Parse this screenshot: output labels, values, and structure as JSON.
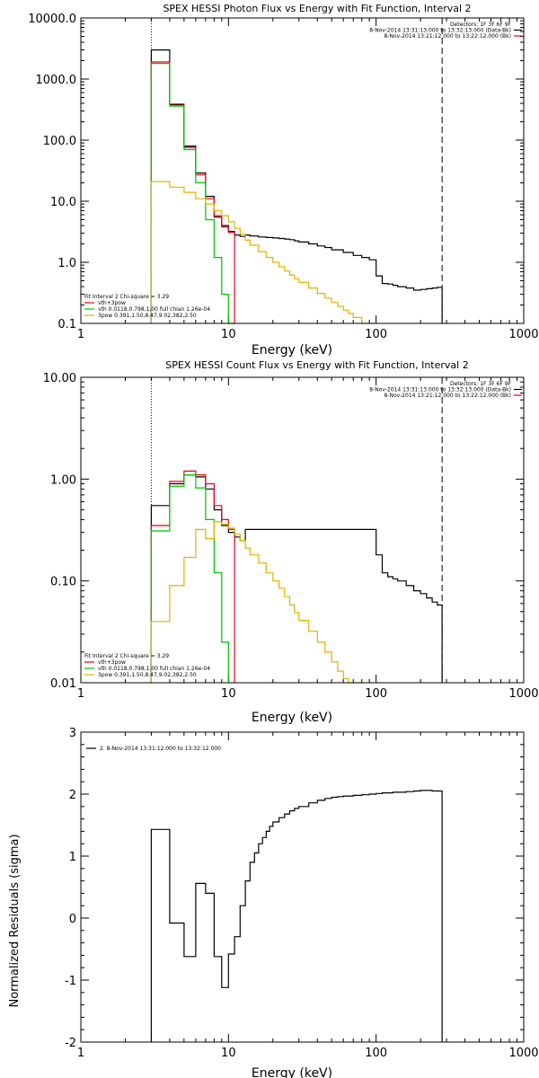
{
  "chart_data": [
    {
      "type": "line",
      "title": "SPEX HESSI Photon Flux vs Energy with Fit Function, Interval 2",
      "xlabel": "Energy (keV)",
      "ylabel": "",
      "xscale": "log",
      "yscale": "log",
      "xlim": [
        1,
        1000
      ],
      "ylim": [
        0.1,
        10000
      ],
      "xticks": [
        1,
        10,
        100,
        1000
      ],
      "xtick_labels": [
        "1",
        "10",
        "100",
        "1000"
      ],
      "yticks": [
        0.1,
        1,
        10,
        100,
        1000,
        10000
      ],
      "ytick_labels": [
        "0.1",
        "1.0",
        "10.0",
        "100.0",
        "1000.0",
        "10000.0"
      ],
      "vlines": [
        {
          "x": 3,
          "style": "dotted"
        },
        {
          "x": 280,
          "style": "dashed"
        }
      ],
      "legend_top_right": {
        "lines": [
          "Detectors: 1F 3F 6F 9F",
          "8-Nov-2014 13:31:13.000 to 13:32:13.000 (Data-Bk)",
          "8-Nov-2014 13:21:12.000 to 13:22:12.000 (Bk)"
        ],
        "colors": [
          "#000000",
          "#000000",
          "#e0001a"
        ]
      },
      "legend_bottom_left": {
        "lines": [
          "Fit Interval 2   Chi-square = 3.29",
          "vth+3pow",
          "vth 0.0118,0.798,1.00  full chian 1.26e-04",
          "3pow 0.391,1.50,8.47,9.02,382,2.50"
        ],
        "colors": [
          "#000000",
          "#e0001a",
          "#00c000",
          "#e0b000"
        ]
      },
      "series": [
        {
          "name": "Data-Bk",
          "color": "#000000",
          "x": [
            3,
            3.5,
            4,
            4.5,
            5,
            5.5,
            6,
            6.5,
            7,
            7.5,
            8,
            8.5,
            9,
            9.5,
            10,
            11,
            12,
            13,
            14,
            16,
            18,
            20,
            22,
            24,
            26,
            28,
            30,
            35,
            40,
            45,
            50,
            60,
            70,
            80,
            90,
            100,
            110,
            120,
            130,
            140,
            160,
            180,
            200,
            220,
            240,
            260,
            280
          ],
          "y": [
            3000,
            3000,
            380,
            380,
            80,
            80,
            29,
            29,
            12,
            12,
            5.5,
            5.5,
            4,
            4,
            3.2,
            2.8,
            2.65,
            2.8,
            2.7,
            2.6,
            2.55,
            2.5,
            2.45,
            2.4,
            2.35,
            2.25,
            2.15,
            2.0,
            1.85,
            1.75,
            1.6,
            1.45,
            1.3,
            1.2,
            1.1,
            0.6,
            0.45,
            0.44,
            0.42,
            0.4,
            0.38,
            0.35,
            0.36,
            0.37,
            0.38,
            0.39,
            0.39
          ]
        },
        {
          "name": "vth+3pow",
          "color": "#e0001a",
          "x": [
            3,
            3.5,
            4,
            4.5,
            5,
            5.5,
            6,
            6.5,
            7,
            7.5,
            8,
            8.5,
            9,
            9.5,
            10,
            11
          ],
          "y": [
            1900,
            1900,
            390,
            390,
            76,
            76,
            27,
            27,
            11,
            11,
            5.8,
            5.8,
            3.8,
            3.8,
            3.1,
            2.6
          ]
        },
        {
          "name": "vth",
          "color": "#00c000",
          "x": [
            3,
            3.5,
            4,
            4.5,
            5,
            5.5,
            6,
            6.5,
            7,
            7.5,
            8,
            8.5,
            9,
            9.5,
            10,
            11
          ],
          "y": [
            1800,
            1800,
            360,
            360,
            70,
            70,
            20,
            20,
            5,
            5,
            1.2,
            1.2,
            0.3,
            0.3,
            0.1,
            0.1
          ]
        },
        {
          "name": "3pow",
          "color": "#e0b000",
          "x": [
            3,
            3.5,
            4,
            4.5,
            5,
            5.5,
            6,
            6.5,
            7,
            7.5,
            8,
            8.5,
            9,
            9.5,
            10,
            11,
            12,
            13,
            14,
            16,
            18,
            20,
            22,
            24,
            26,
            28,
            30,
            35,
            40,
            45,
            50,
            55,
            60,
            65,
            70,
            80,
            90,
            100
          ],
          "y": [
            21,
            21,
            17,
            17,
            14,
            14,
            11,
            11,
            9,
            9,
            7,
            7,
            5.8,
            5.8,
            4.6,
            3.6,
            2.9,
            2.3,
            1.9,
            1.5,
            1.2,
            1.0,
            0.85,
            0.72,
            0.62,
            0.54,
            0.47,
            0.38,
            0.31,
            0.26,
            0.22,
            0.19,
            0.165,
            0.145,
            0.125,
            0.1,
            0.1,
            0.1
          ]
        }
      ]
    },
    {
      "type": "line",
      "title": "SPEX HESSI Count Flux vs Energy with Fit Function, Interval 2",
      "xlabel": "Energy (keV)",
      "ylabel": "",
      "xscale": "log",
      "yscale": "log",
      "xlim": [
        1,
        1000
      ],
      "ylim": [
        0.01,
        10
      ],
      "xticks": [
        1,
        10,
        100,
        1000
      ],
      "xtick_labels": [
        "1",
        "10",
        "100",
        "1000"
      ],
      "yticks": [
        0.01,
        0.1,
        1,
        10
      ],
      "ytick_labels": [
        "0.01",
        "0.10",
        "1.00",
        "10.00"
      ],
      "vlines": [
        {
          "x": 3,
          "style": "dotted"
        },
        {
          "x": 280,
          "style": "dashed"
        }
      ],
      "legend_top_right": {
        "lines": [
          "Detectors: 1F 3F 6F 9F",
          "8-Nov-2014 13:31:13.000 to 13:32:13.000 (Data-Bk)",
          "8-Nov-2014 13:21:12.000 to 13:22:12.000 (Bk)"
        ],
        "colors": [
          "#000000",
          "#000000",
          "#e0001a"
        ]
      },
      "legend_bottom_left": {
        "lines": [
          "Fit Interval 2   Chi-square = 3.29",
          "vth+3pow",
          "vth 0.0118,0.798,1.00  full chian 1.26e-04",
          "3pow 0.391,1.50,8.47,9.02,382,2.50"
        ],
        "colors": [
          "#000000",
          "#e0001a",
          "#00c000",
          "#e0b000"
        ]
      },
      "series": [
        {
          "name": "Data-Bk",
          "color": "#000000",
          "x": [
            3,
            3.5,
            4,
            4.5,
            5,
            5.5,
            6,
            6.5,
            7,
            7.5,
            8,
            8.5,
            9,
            9.5,
            10,
            11,
            12,
            13,
            14,
            16,
            18,
            20,
            22,
            24,
            26,
            28,
            30,
            35,
            40,
            45,
            50,
            60,
            70,
            80,
            90,
            100,
            110,
            120,
            130,
            140,
            160,
            180,
            200,
            220,
            240,
            260,
            280
          ],
          "y": [
            0.55,
            0.55,
            0.9,
            0.9,
            1.1,
            1.1,
            1.05,
            1.05,
            0.8,
            0.8,
            0.5,
            0.5,
            0.35,
            0.35,
            0.3,
            0.27,
            0.25,
            0.32,
            0.32,
            0.32,
            0.32,
            0.32,
            0.32,
            0.32,
            0.32,
            0.32,
            0.32,
            0.32,
            0.32,
            0.32,
            0.32,
            0.32,
            0.32,
            0.32,
            0.32,
            0.18,
            0.12,
            0.11,
            0.105,
            0.1,
            0.09,
            0.08,
            0.075,
            0.068,
            0.062,
            0.058,
            0.055
          ]
        },
        {
          "name": "vth+3pow",
          "color": "#e0001a",
          "x": [
            3,
            3.5,
            4,
            4.5,
            5,
            5.5,
            6,
            6.5,
            7,
            7.5,
            8,
            8.5,
            9,
            9.5,
            10,
            11
          ],
          "y": [
            0.35,
            0.35,
            0.95,
            0.95,
            1.2,
            1.2,
            1.1,
            1.1,
            0.9,
            0.9,
            0.55,
            0.55,
            0.4,
            0.4,
            0.32,
            0.28
          ]
        },
        {
          "name": "vth",
          "color": "#00c000",
          "x": [
            3,
            3.5,
            4,
            4.5,
            5,
            5.5,
            6,
            6.5,
            7,
            7.5,
            8,
            8.5,
            9,
            9.5,
            10
          ],
          "y": [
            0.31,
            0.31,
            0.85,
            0.85,
            1.1,
            1.1,
            0.82,
            0.82,
            0.4,
            0.4,
            0.12,
            0.12,
            0.025,
            0.025,
            0.01
          ]
        },
        {
          "name": "3pow",
          "color": "#e0b000",
          "x": [
            3,
            3.5,
            4,
            4.5,
            5,
            5.5,
            6,
            6.5,
            7,
            7.5,
            8,
            8.5,
            9,
            9.5,
            10,
            11,
            12,
            13,
            14,
            16,
            18,
            20,
            22,
            24,
            26,
            28,
            30,
            35,
            40,
            45,
            50,
            55,
            60,
            65,
            70,
            80
          ],
          "y": [
            0.04,
            0.04,
            0.09,
            0.09,
            0.17,
            0.17,
            0.32,
            0.32,
            0.26,
            0.26,
            0.38,
            0.38,
            0.36,
            0.36,
            0.33,
            0.29,
            0.25,
            0.21,
            0.18,
            0.15,
            0.12,
            0.1,
            0.085,
            0.07,
            0.058,
            0.049,
            0.041,
            0.032,
            0.025,
            0.02,
            0.016,
            0.013,
            0.011,
            0.01,
            0.01,
            0.01
          ]
        }
      ]
    },
    {
      "type": "line",
      "title": "",
      "xlabel": "Energy (keV)",
      "ylabel": "Normalized Residuals (sigma)",
      "xscale": "log",
      "yscale": "linear",
      "xlim": [
        1,
        1000
      ],
      "ylim": [
        -2,
        3
      ],
      "xticks": [
        1,
        10,
        100,
        1000
      ],
      "xtick_labels": [
        "1",
        "10",
        "100",
        "1000"
      ],
      "yticks": [
        -2,
        -1,
        0,
        1,
        2,
        3
      ],
      "ytick_labels": [
        "-2",
        "-1",
        "0",
        "1",
        "2",
        "3"
      ],
      "legend_top_left": {
        "lines": [
          "2.  8-Nov-2014 13:31:12.000 to 13:32:12.000"
        ],
        "colors": [
          "#000000"
        ]
      },
      "series": [
        {
          "name": "2.  8-Nov-2014 13:31:12.000 to 13:32:12.000",
          "color": "#000000",
          "x": [
            3,
            3.5,
            4,
            4.5,
            5,
            5.5,
            6,
            6.5,
            7,
            7.5,
            8,
            8.5,
            9,
            9.5,
            10,
            11,
            12,
            13,
            14,
            15,
            16,
            17,
            18,
            19,
            20,
            22,
            24,
            26,
            28,
            30,
            35,
            40,
            45,
            50,
            55,
            60,
            70,
            80,
            90,
            100,
            110,
            120,
            130,
            140,
            160,
            180,
            200,
            220,
            240,
            260,
            280
          ],
          "y": [
            1.43,
            1.43,
            -0.08,
            -0.08,
            -0.62,
            -0.62,
            0.56,
            0.56,
            0.4,
            0.4,
            -0.62,
            -0.62,
            -1.12,
            -1.12,
            -0.58,
            -0.3,
            0.2,
            0.6,
            0.9,
            1.05,
            1.2,
            1.3,
            1.4,
            1.48,
            1.55,
            1.62,
            1.68,
            1.73,
            1.77,
            1.8,
            1.86,
            1.9,
            1.93,
            1.95,
            1.96,
            1.97,
            1.98,
            1.99,
            2.0,
            2.01,
            2.02,
            2.02,
            2.03,
            2.03,
            2.04,
            2.05,
            2.06,
            2.06,
            2.05,
            2.05,
            2.05
          ]
        }
      ]
    }
  ]
}
